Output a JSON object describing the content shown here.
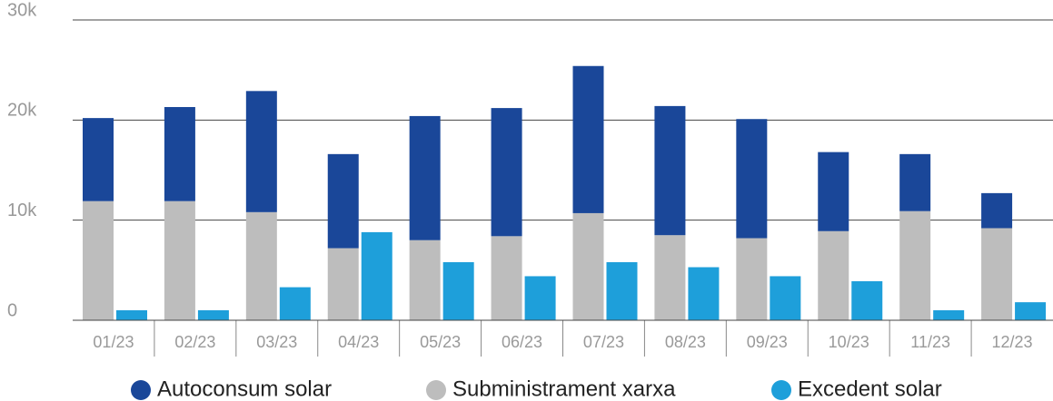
{
  "chart_data": {
    "type": "bar",
    "categories": [
      "01/23",
      "02/23",
      "03/23",
      "04/23",
      "05/23",
      "06/23",
      "07/23",
      "08/23",
      "09/23",
      "10/23",
      "11/23",
      "12/23"
    ],
    "series": [
      {
        "name": "Autoconsum solar",
        "color": "#1a4799",
        "values": [
          8300,
          9400,
          12100,
          9400,
          12400,
          12800,
          14700,
          12900,
          11900,
          7900,
          5700,
          3500
        ]
      },
      {
        "name": "Subministrament xarxa",
        "color": "#bdbdbd",
        "values": [
          11900,
          11900,
          10800,
          7200,
          8000,
          8400,
          10700,
          8500,
          8200,
          8900,
          10900,
          9200
        ]
      },
      {
        "name": "Excedent solar",
        "color": "#1e9fda",
        "values": [
          1000,
          1000,
          3300,
          8800,
          5800,
          4400,
          5800,
          5300,
          4400,
          3900,
          1000,
          1800
        ]
      }
    ],
    "ylim": [
      0,
      30000
    ],
    "yticks": [
      0,
      {
        "value": 10000,
        "label": "10k"
      },
      {
        "value": 20000,
        "label": "20k"
      },
      {
        "value": 30000,
        "label": "30k"
      }
    ],
    "grid": true
  }
}
